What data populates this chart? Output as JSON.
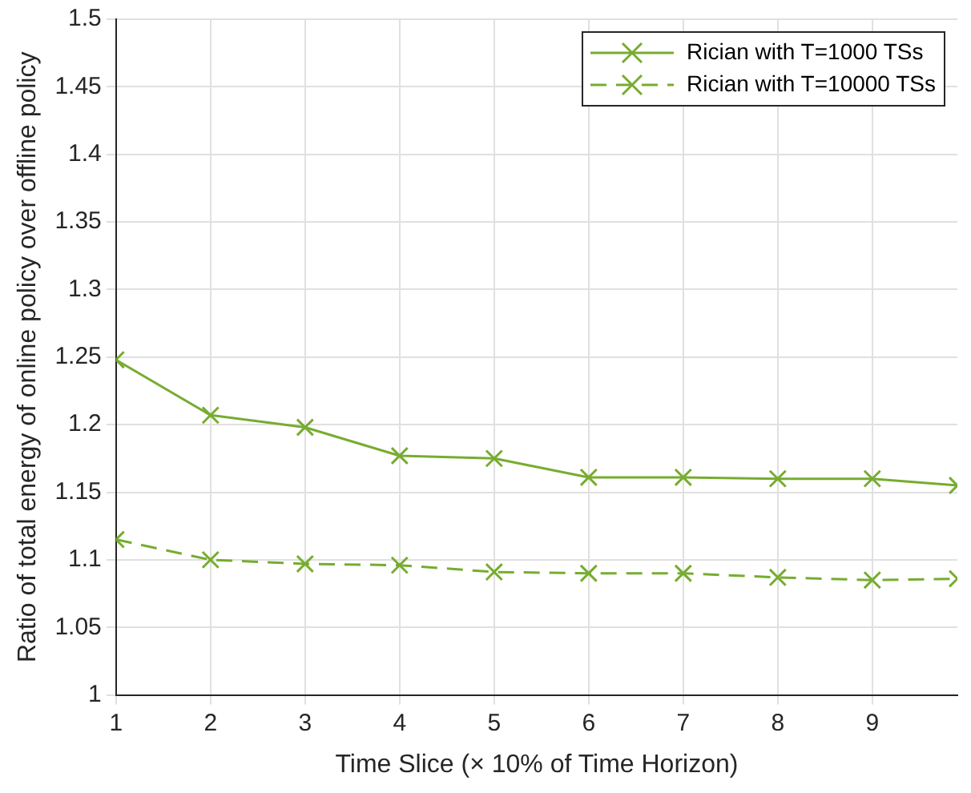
{
  "chart_data": {
    "type": "line",
    "xlabel": "Time Slice (× 10% of Time Horizon)",
    "ylabel": "Ratio of total energy of online policy over offline policy",
    "x": [
      1,
      2,
      3,
      4,
      5,
      6,
      7,
      8,
      9,
      9.9
    ],
    "series": [
      {
        "name": "Rician with T=1000 TSs",
        "color": "#77ac30",
        "line_style": "solid",
        "values": [
          1.248,
          1.207,
          1.198,
          1.177,
          1.175,
          1.161,
          1.161,
          1.16,
          1.16,
          1.155
        ]
      },
      {
        "name": "Rician with T=10000 TSs",
        "color": "#77ac30",
        "line_style": "dashed",
        "values": [
          1.115,
          1.1,
          1.097,
          1.096,
          1.091,
          1.09,
          1.09,
          1.087,
          1.085,
          1.086
        ]
      }
    ],
    "xlim": [
      1,
      9.9
    ],
    "xticks": [
      1,
      2,
      3,
      4,
      5,
      6,
      7,
      8,
      9
    ],
    "ylim": [
      1,
      1.5
    ],
    "yticks": [
      1,
      1.05,
      1.1,
      1.15,
      1.2,
      1.25,
      1.3,
      1.35,
      1.4,
      1.45,
      1.5
    ],
    "grid": true,
    "legend": "top right",
    "marker": "cross"
  }
}
